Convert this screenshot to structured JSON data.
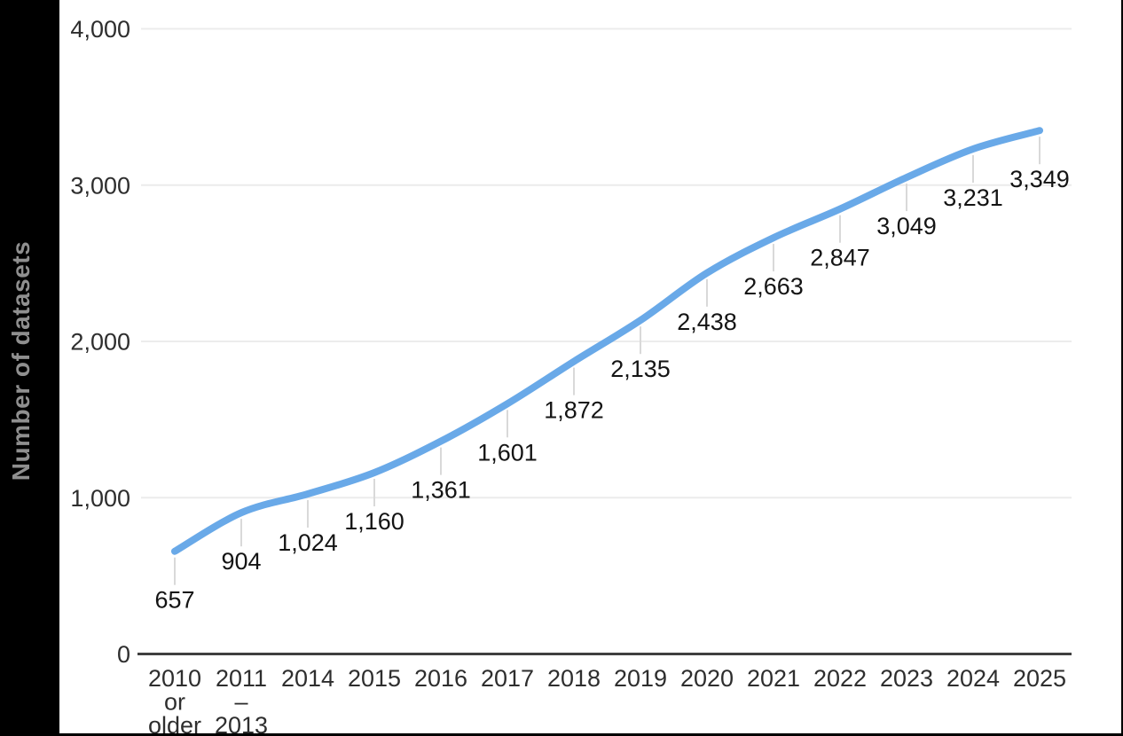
{
  "chart": {
    "y_axis_title": "Number of datasets"
  },
  "colors": {
    "background": "#000000",
    "panel": "#ffffff",
    "line": "#69a9e8",
    "grid": "#ececec",
    "axis_line": "#3f3f3f",
    "tick_text": "#2e2e2e",
    "data_label_text": "#141414",
    "axis_title_text": "#8f8f8f",
    "leader_line": "#d9d9d9"
  },
  "chart_data": {
    "type": "line",
    "title": "",
    "xlabel": "",
    "ylabel": "Number of datasets",
    "legend": "none",
    "grid": "horizontal",
    "ylim": [
      0,
      4000
    ],
    "categories": [
      [
        "2010",
        "or",
        "older"
      ],
      [
        "2011",
        "–",
        "2013"
      ],
      [
        "2014"
      ],
      [
        "2015"
      ],
      [
        "2016"
      ],
      [
        "2017"
      ],
      [
        "2018"
      ],
      [
        "2019"
      ],
      [
        "2020"
      ],
      [
        "2021"
      ],
      [
        "2022"
      ],
      [
        "2023"
      ],
      [
        "2024"
      ],
      [
        "2025"
      ]
    ],
    "series": [
      {
        "name": "Number of datasets",
        "values": [
          657,
          904,
          1024,
          1160,
          1361,
          1601,
          1872,
          2135,
          2438,
          2663,
          2847,
          3049,
          3231,
          3349
        ]
      }
    ],
    "value_labels": [
      "657",
      "904",
      "1,024",
      "1,160",
      "1,361",
      "1,601",
      "1,872",
      "2,135",
      "2,438",
      "2,663",
      "2,847",
      "3,049",
      "3,231",
      "3,349"
    ],
    "y_ticks": [
      {
        "value": 0,
        "label": "0"
      },
      {
        "value": 1000,
        "label": "1,000"
      },
      {
        "value": 2000,
        "label": "2,000"
      },
      {
        "value": 3000,
        "label": "3,000"
      },
      {
        "value": 4000,
        "label": "4,000"
      }
    ]
  }
}
